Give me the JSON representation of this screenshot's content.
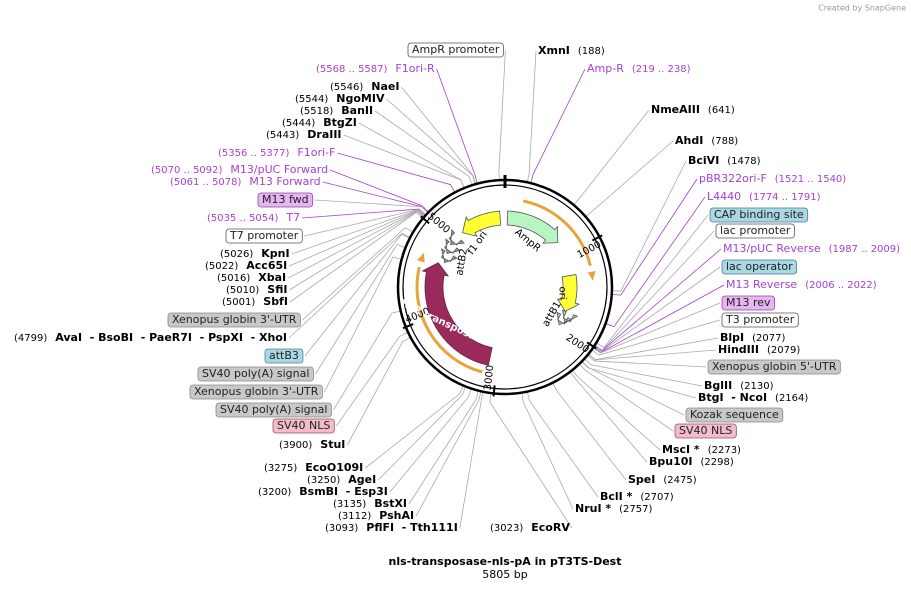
{
  "credit": "Created by SnapGene",
  "title": "nls-transposase-nls-pA in pT3TS-Dest",
  "subtitle": "5805 bp",
  "ring_ticks": [
    1000,
    2000,
    3000,
    4000,
    5000
  ],
  "features": [
    "f1 ori",
    "AmpR",
    "ori",
    "attB1",
    "attB2",
    "Tol2 transposase"
  ],
  "labels": [
    {
      "name": "AmpR promoter"
    },
    {
      "name": "XmnI",
      "position": "(188)"
    },
    {
      "name": "F1ori-R",
      "position": "(5568 .. 5587)"
    },
    {
      "name": "Amp-R",
      "position": "(219 .. 238)"
    },
    {
      "name": "NaeI",
      "position": "(5546)"
    },
    {
      "name": "NgoMIV",
      "position": "(5544)"
    },
    {
      "name": "BanII",
      "position": "(5518)"
    },
    {
      "name": "BtgZI",
      "position": "(5444)"
    },
    {
      "name": "DraIII",
      "position": "(5443)"
    },
    {
      "name": "NmeAIII",
      "position": "(641)"
    },
    {
      "name": "AhdI",
      "position": "(788)"
    },
    {
      "name": "F1ori-F",
      "position": "(5356 .. 5377)"
    },
    {
      "name": "BciVI",
      "position": "(1478)"
    },
    {
      "name": "M13/pUC Forward",
      "position": "(5070 .. 5092)"
    },
    {
      "name": "pBR322ori-F",
      "position": "(1521 .. 1540)"
    },
    {
      "name": "M13 Forward",
      "position": "(5061 .. 5078)"
    },
    {
      "name": "L4440",
      "position": "(1774 .. 1791)"
    },
    {
      "name": "M13 fwd"
    },
    {
      "name": "CAP binding site"
    },
    {
      "name": "T7",
      "position": "(5035 .. 5054)"
    },
    {
      "name": "lac promoter"
    },
    {
      "name": "T7 promoter"
    },
    {
      "name": "M13/pUC Reverse",
      "position": "(1987 .. 2009)"
    },
    {
      "name": "KpnI",
      "position": "(5026)"
    },
    {
      "name": "lac operator"
    },
    {
      "name": "Acc65I",
      "position": "(5022)"
    },
    {
      "name": "XbaI",
      "position": "(5016)"
    },
    {
      "name": "M13 Reverse",
      "position": "(2006 .. 2022)"
    },
    {
      "name": "SfiI",
      "position": "(5010)"
    },
    {
      "name": "M13 rev"
    },
    {
      "name": "SbfI",
      "position": "(5001)"
    },
    {
      "name": "T3 promoter"
    },
    {
      "name": "Xenopus globin 3'-UTR"
    },
    {
      "name": "AvaI  - BsoBI  - PaeR7I  - PspXI  - XhoI",
      "position": "(4799)"
    },
    {
      "name": "BlpI",
      "position": "(2077)"
    },
    {
      "name": "HindIII",
      "position": "(2079)"
    },
    {
      "name": "attB3"
    },
    {
      "name": "Xenopus globin 5'-UTR"
    },
    {
      "name": "SV40 poly(A) signal"
    },
    {
      "name": "BglII",
      "position": "(2130)"
    },
    {
      "name": "Xenopus globin 3'-UTR"
    },
    {
      "name": "BtgI  - NcoI",
      "position": "(2164)"
    },
    {
      "name": "SV40 poly(A) signal"
    },
    {
      "name": "Kozak sequence"
    },
    {
      "name": "SV40 NLS"
    },
    {
      "name": "SV40 NLS"
    },
    {
      "name": "StuI",
      "position": "(3900)"
    },
    {
      "name": "MscI *",
      "position": "(2273)"
    },
    {
      "name": "Bpu10I",
      "position": "(2298)"
    },
    {
      "name": "EcoO109I",
      "position": "(3275)"
    },
    {
      "name": "SpeI",
      "position": "(2475)"
    },
    {
      "name": "AgeI",
      "position": "(3250)"
    },
    {
      "name": "BsmBI  - Esp3I",
      "position": "(3200)"
    },
    {
      "name": "BclI *",
      "position": "(2707)"
    },
    {
      "name": "BstXI",
      "position": "(3135)"
    },
    {
      "name": "NruI *",
      "position": "(2757)"
    },
    {
      "name": "PshAI",
      "position": "(3112)"
    },
    {
      "name": "PflFI  - Tth111I",
      "position": "(3093)"
    },
    {
      "name": "EcoRV",
      "position": "(3023)"
    }
  ]
}
